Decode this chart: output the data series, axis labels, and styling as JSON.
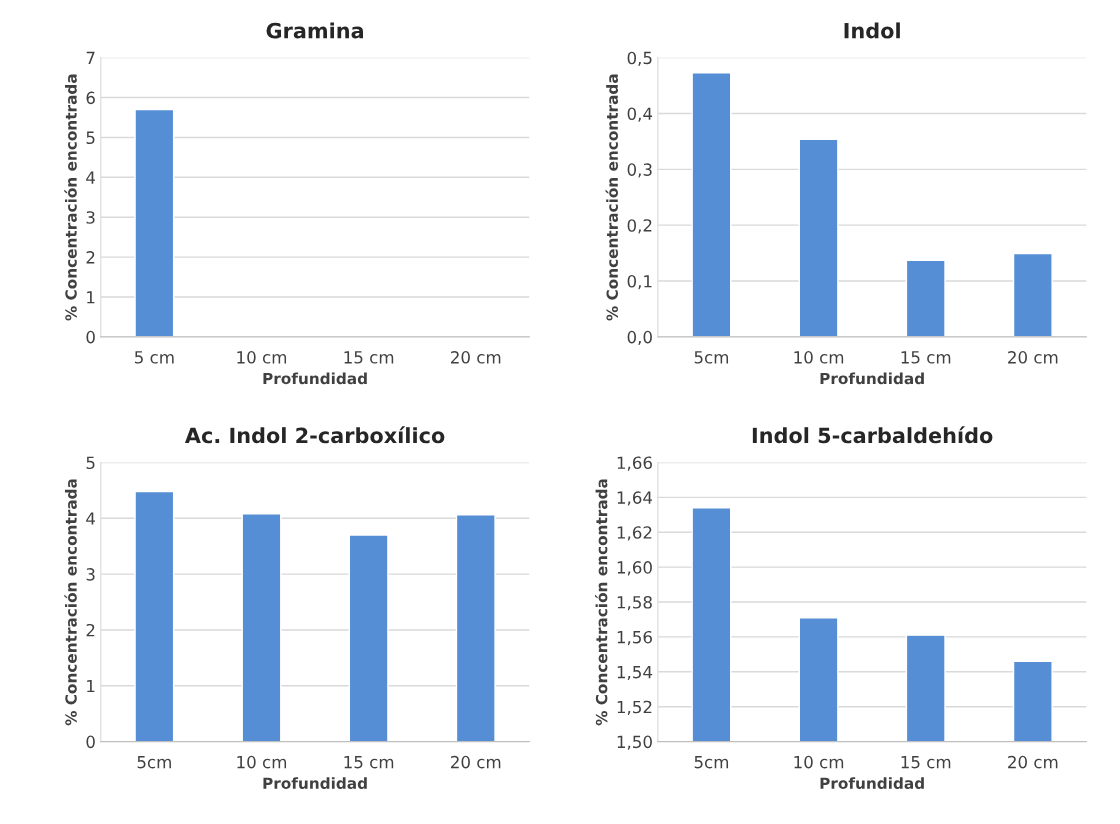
{
  "chart_data": [
    {
      "type": "bar",
      "title": "Gramina",
      "xlabel": "Profundidad",
      "ylabel": "% Concentración encontrada",
      "categories": [
        "5 cm",
        "10 cm",
        "15 cm",
        "20 cm"
      ],
      "series": [
        {
          "color": "#558ed5",
          "values": [
            5.7,
            null,
            null,
            null
          ]
        }
      ],
      "ylim": [
        0,
        7
      ],
      "yticks": [
        0,
        1,
        2,
        3,
        4,
        5,
        6,
        7
      ],
      "grid": "y"
    },
    {
      "type": "bar",
      "title": "Indol",
      "xlabel": "Profundidad",
      "ylabel": "% Concentración encontrada",
      "categories": [
        "5cm",
        "10 cm",
        "15 cm",
        "20 cm"
      ],
      "series": [
        {
          "color": "#558ed5",
          "values": [
            0.473,
            0.354,
            0.137,
            0.149
          ]
        }
      ],
      "ylim": [
        0,
        0.5
      ],
      "yticks": [
        {
          "value": 0,
          "label": "0,0"
        },
        {
          "value": 0.1,
          "label": "0,1"
        },
        {
          "value": 0.2,
          "label": "0,2"
        },
        {
          "value": 0.3,
          "label": "0,3"
        },
        {
          "value": 0.4,
          "label": "0,4"
        },
        {
          "value": 0.5,
          "label": "0,5"
        }
      ],
      "grid": "y"
    },
    {
      "type": "bar",
      "title": "Ac. Indol 2-carboxílico",
      "xlabel": "Profundidad",
      "ylabel": "% Concentración encontrada",
      "categories": [
        "5cm",
        "10 cm",
        "15 cm",
        "20 cm"
      ],
      "series": [
        {
          "color": "#558ed5",
          "values": [
            4.48,
            4.08,
            3.7,
            4.06
          ]
        }
      ],
      "ylim": [
        0,
        5
      ],
      "yticks": [
        0,
        1,
        2,
        3,
        4,
        5
      ],
      "grid": "y"
    },
    {
      "type": "bar",
      "title": "Indol 5-carbaldehído",
      "xlabel": "Profundidad",
      "ylabel": "% Concentración encontrada",
      "categories": [
        "5cm",
        "10 cm",
        "15 cm",
        "20 cm"
      ],
      "series": [
        {
          "color": "#558ed5",
          "values": [
            1.634,
            1.571,
            1.561,
            1.546
          ]
        }
      ],
      "ylim": [
        1.5,
        1.66
      ],
      "yticks": [
        {
          "value": 1.5,
          "label": "1,50"
        },
        {
          "value": 1.52,
          "label": "1,52"
        },
        {
          "value": 1.54,
          "label": "1,54"
        },
        {
          "value": 1.56,
          "label": "1,56"
        },
        {
          "value": 1.58,
          "label": "1,58"
        },
        {
          "value": 1.6,
          "label": "1,60"
        },
        {
          "value": 1.62,
          "label": "1,62"
        },
        {
          "value": 1.64,
          "label": "1,64"
        },
        {
          "value": 1.66,
          "label": "1,66"
        }
      ],
      "grid": "y"
    }
  ]
}
